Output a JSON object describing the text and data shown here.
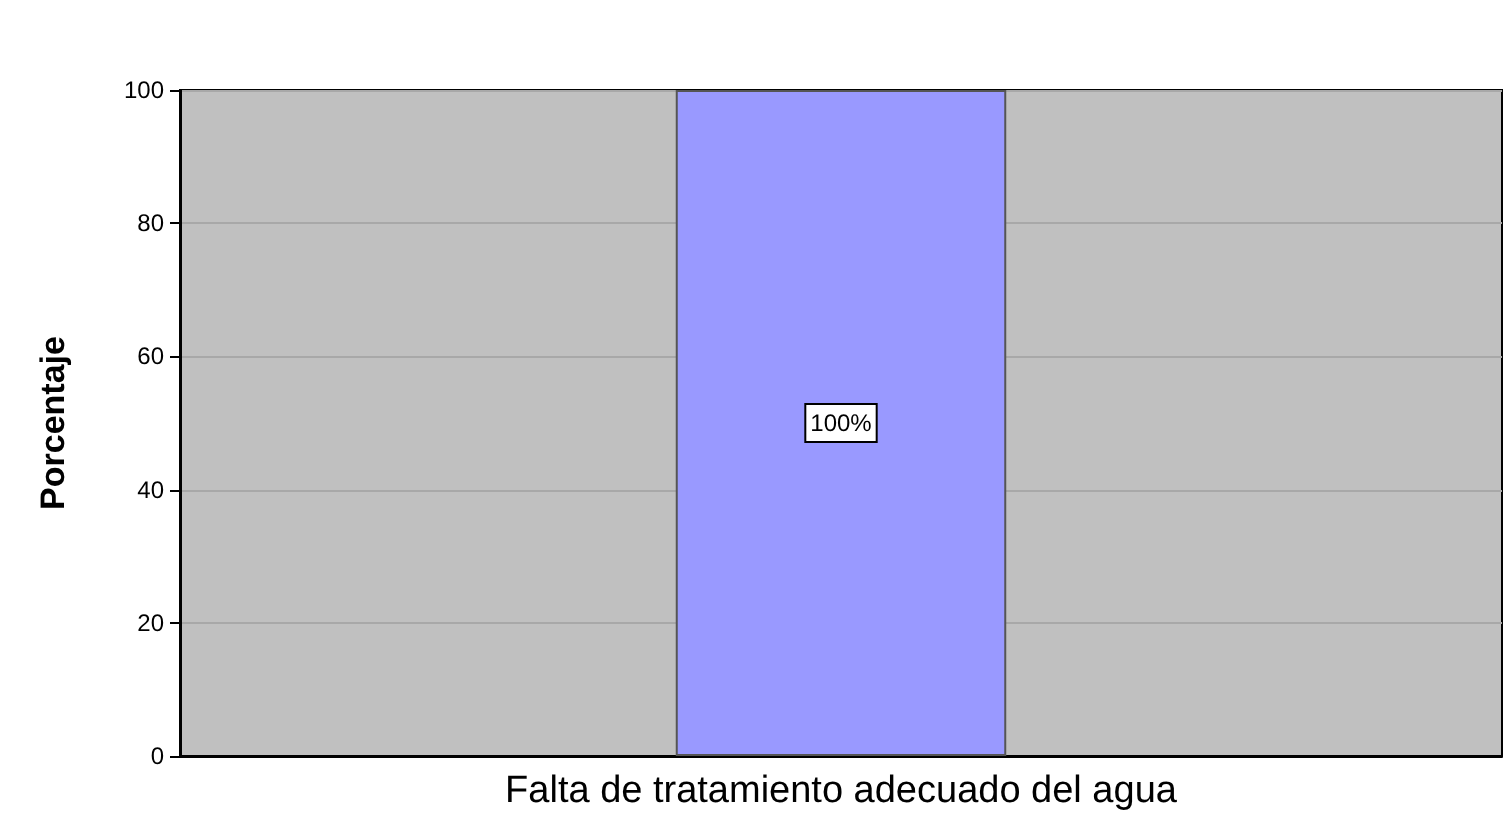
{
  "chart_data": {
    "type": "bar",
    "ylabel": "Porcentaje",
    "categories": [
      "Falta de tratamiento adecuado del agua"
    ],
    "values": [
      100
    ],
    "value_labels": [
      "100%"
    ],
    "color": "#9999ff",
    "ylim": [
      0,
      100
    ],
    "yticks": [
      0,
      20,
      40,
      60,
      80,
      100
    ],
    "grid": "y"
  }
}
